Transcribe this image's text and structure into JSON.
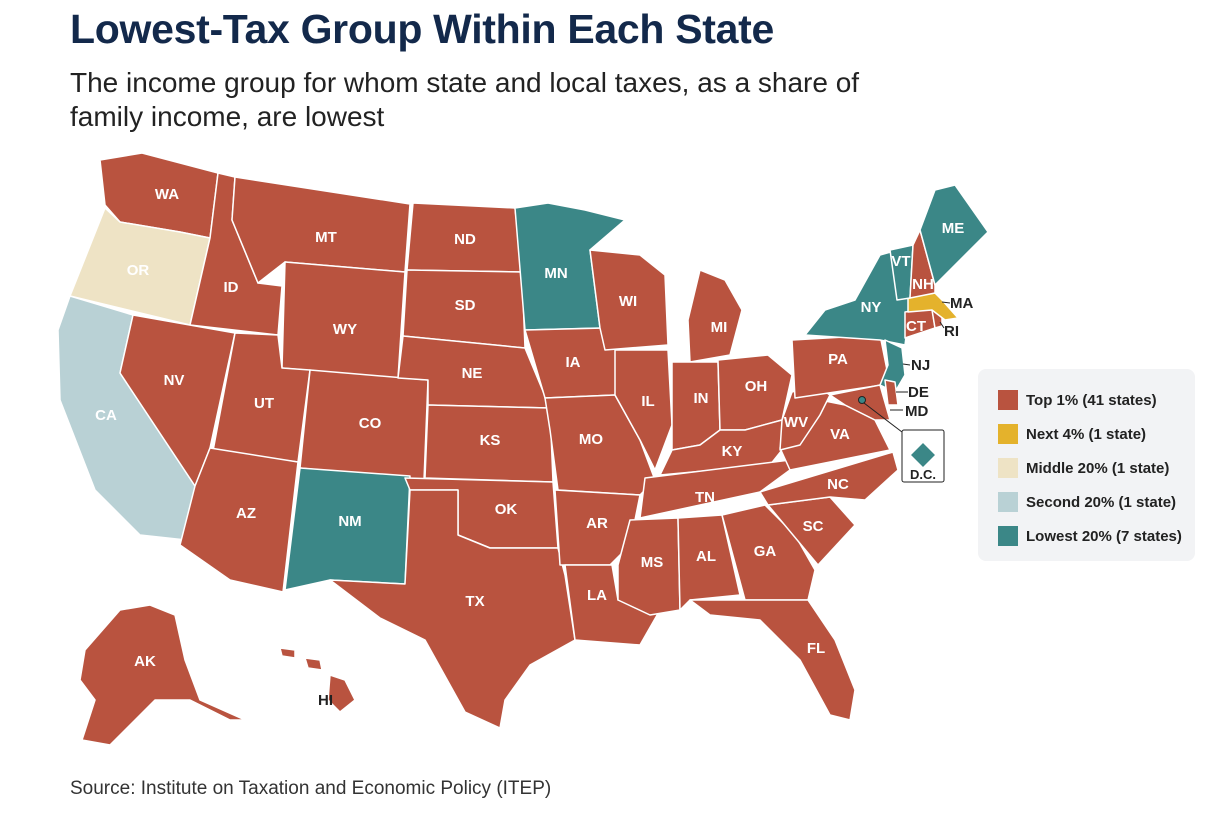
{
  "title": "Lowest-Tax Group Within Each State",
  "subtitle": "The income group for whom state and local taxes, as a share of family income, are lowest",
  "source": "Source: Institute on Taxation and Economic Policy (ITEP)",
  "colors": {
    "top1": "#b9533f",
    "next4": "#e4b22c",
    "middle20": "#eee3c5",
    "second20": "#b9d1d5",
    "lowest20": "#3b8787"
  },
  "legend": [
    {
      "key": "top1",
      "label": "Top 1% (41 states)"
    },
    {
      "key": "next4",
      "label": "Next 4% (1 state)"
    },
    {
      "key": "middle20",
      "label": "Middle 20% (1 state)"
    },
    {
      "key": "second20",
      "label": "Second 20% (1 state)"
    },
    {
      "key": "lowest20",
      "label": "Lowest 20% (7 states)"
    }
  ],
  "states": {
    "WA": "top1",
    "OR": "middle20",
    "CA": "second20",
    "ID": "top1",
    "NV": "top1",
    "MT": "top1",
    "WY": "top1",
    "UT": "top1",
    "AZ": "top1",
    "CO": "top1",
    "NM": "lowest20",
    "ND": "top1",
    "SD": "top1",
    "NE": "top1",
    "KS": "top1",
    "OK": "top1",
    "TX": "top1",
    "MN": "lowest20",
    "IA": "top1",
    "MO": "top1",
    "AR": "top1",
    "LA": "top1",
    "WI": "top1",
    "IL": "top1",
    "MI": "top1",
    "IN": "top1",
    "OH": "top1",
    "KY": "top1",
    "TN": "top1",
    "MS": "top1",
    "AL": "top1",
    "GA": "top1",
    "FL": "top1",
    "SC": "top1",
    "NC": "top1",
    "VA": "top1",
    "WV": "top1",
    "PA": "top1",
    "NY": "lowest20",
    "NJ": "lowest20",
    "DE": "top1",
    "MD": "top1",
    "CT": "top1",
    "RI": "top1",
    "MA": "next4",
    "VT": "lowest20",
    "NH": "top1",
    "ME": "lowest20",
    "AK": "top1",
    "HI": "top1",
    "DC": "lowest20"
  },
  "dc_label": "D.C."
}
